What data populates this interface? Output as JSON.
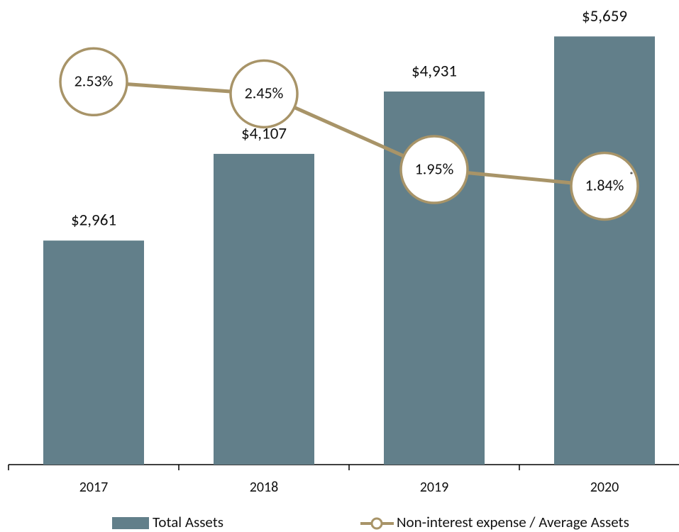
{
  "chart_data": {
    "type": "bar",
    "categories": [
      "2017",
      "2018",
      "2019",
      "2020"
    ],
    "series": [
      {
        "name": "Total Assets",
        "type": "bar",
        "color": "#627f8a",
        "values": [
          2961,
          4107,
          4931,
          5659
        ],
        "value_labels": [
          "$2,961",
          "$4,107",
          "$4,931",
          "$5,659"
        ]
      },
      {
        "name": "Non-interest expense / Average Assets",
        "type": "line",
        "axis": "y2",
        "color": "#a89468",
        "values": [
          2.53,
          2.45,
          1.95,
          1.84
        ],
        "value_labels": [
          "2.53%",
          "2.45%",
          "1.95%",
          "1.84%"
        ],
        "note_marks": [
          null,
          null,
          null,
          "*"
        ]
      }
    ],
    "ylim": [
      0,
      6000
    ],
    "y2lim": [
      0,
      3
    ],
    "legend": "bottom"
  }
}
